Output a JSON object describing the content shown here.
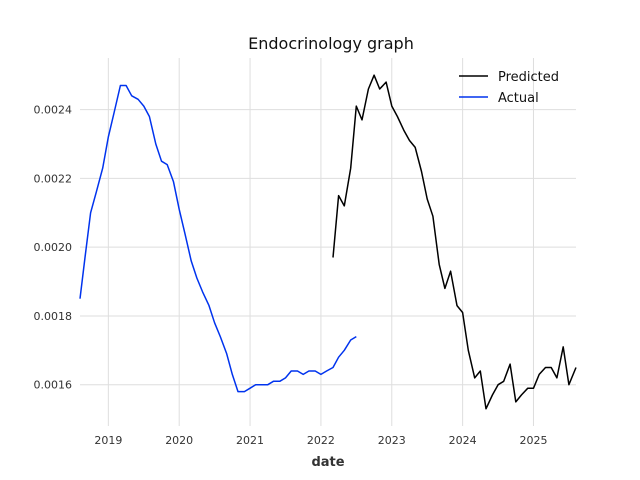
{
  "chart_data": {
    "type": "line",
    "title": "Endocrinology graph",
    "xlabel": "date",
    "ylabel": "",
    "xlim": [
      2018.6,
      2025.6
    ],
    "ylim": [
      0.00148,
      0.00255
    ],
    "x_ticks": [
      2019,
      2020,
      2021,
      2022,
      2023,
      2024,
      2025
    ],
    "x_tick_labels": [
      "2019",
      "2020",
      "2021",
      "2022",
      "2023",
      "2024",
      "2025"
    ],
    "y_ticks": [
      0.0016,
      0.0018,
      0.002,
      0.0022,
      0.0024
    ],
    "y_tick_labels": [
      "0.0016",
      "0.0018",
      "0.0020",
      "0.0022",
      "0.0024"
    ],
    "grid": true,
    "legend_position": "top-right",
    "series": [
      {
        "name": "Predicted",
        "color": "#000000",
        "points": [
          [
            2022.17,
            0.00197
          ],
          [
            2022.25,
            0.00215
          ],
          [
            2022.33,
            0.00212
          ],
          [
            2022.42,
            0.00223
          ],
          [
            2022.5,
            0.00241
          ],
          [
            2022.58,
            0.00237
          ],
          [
            2022.67,
            0.00246
          ],
          [
            2022.75,
            0.0025
          ],
          [
            2022.83,
            0.00246
          ],
          [
            2022.92,
            0.00248
          ],
          [
            2023.0,
            0.00241
          ],
          [
            2023.08,
            0.00238
          ],
          [
            2023.17,
            0.00234
          ],
          [
            2023.25,
            0.00231
          ],
          [
            2023.33,
            0.00229
          ],
          [
            2023.42,
            0.00222
          ],
          [
            2023.5,
            0.00214
          ],
          [
            2023.58,
            0.00209
          ],
          [
            2023.67,
            0.00195
          ],
          [
            2023.75,
            0.00188
          ],
          [
            2023.83,
            0.00193
          ],
          [
            2023.92,
            0.00183
          ],
          [
            2024.0,
            0.00181
          ],
          [
            2024.08,
            0.0017
          ],
          [
            2024.17,
            0.00162
          ],
          [
            2024.25,
            0.00164
          ],
          [
            2024.33,
            0.00153
          ],
          [
            2024.42,
            0.00157
          ],
          [
            2024.5,
            0.0016
          ],
          [
            2024.58,
            0.00161
          ],
          [
            2024.67,
            0.00166
          ],
          [
            2024.75,
            0.00155
          ],
          [
            2024.83,
            0.00157
          ],
          [
            2024.92,
            0.00159
          ],
          [
            2025.0,
            0.00159
          ],
          [
            2025.08,
            0.00163
          ],
          [
            2025.17,
            0.00165
          ],
          [
            2025.25,
            0.00165
          ],
          [
            2025.33,
            0.00162
          ],
          [
            2025.42,
            0.00171
          ],
          [
            2025.5,
            0.0016
          ],
          [
            2025.6,
            0.00165
          ]
        ]
      },
      {
        "name": "Actual",
        "color": "#0033ee",
        "points": [
          [
            2018.6,
            0.00185
          ],
          [
            2018.67,
            0.00197
          ],
          [
            2018.75,
            0.0021
          ],
          [
            2018.83,
            0.00216
          ],
          [
            2018.92,
            0.00223
          ],
          [
            2019.0,
            0.00232
          ],
          [
            2019.08,
            0.00239
          ],
          [
            2019.17,
            0.00247
          ],
          [
            2019.25,
            0.00247
          ],
          [
            2019.33,
            0.00244
          ],
          [
            2019.42,
            0.00243
          ],
          [
            2019.5,
            0.00241
          ],
          [
            2019.58,
            0.00238
          ],
          [
            2019.67,
            0.0023
          ],
          [
            2019.75,
            0.00225
          ],
          [
            2019.83,
            0.00224
          ],
          [
            2019.92,
            0.00219
          ],
          [
            2020.0,
            0.00211
          ],
          [
            2020.08,
            0.00204
          ],
          [
            2020.17,
            0.00196
          ],
          [
            2020.25,
            0.00191
          ],
          [
            2020.33,
            0.00187
          ],
          [
            2020.42,
            0.00183
          ],
          [
            2020.5,
            0.00178
          ],
          [
            2020.58,
            0.00174
          ],
          [
            2020.67,
            0.00169
          ],
          [
            2020.75,
            0.00163
          ],
          [
            2020.83,
            0.00158
          ],
          [
            2020.92,
            0.00158
          ],
          [
            2021.0,
            0.00159
          ],
          [
            2021.08,
            0.0016
          ],
          [
            2021.17,
            0.0016
          ],
          [
            2021.25,
            0.0016
          ],
          [
            2021.33,
            0.00161
          ],
          [
            2021.42,
            0.00161
          ],
          [
            2021.5,
            0.00162
          ],
          [
            2021.58,
            0.00164
          ],
          [
            2021.67,
            0.00164
          ],
          [
            2021.75,
            0.00163
          ],
          [
            2021.83,
            0.00164
          ],
          [
            2021.92,
            0.00164
          ],
          [
            2022.0,
            0.00163
          ],
          [
            2022.08,
            0.00164
          ],
          [
            2022.17,
            0.00165
          ],
          [
            2022.25,
            0.00168
          ],
          [
            2022.33,
            0.0017
          ],
          [
            2022.42,
            0.00173
          ],
          [
            2022.5,
            0.00174
          ]
        ]
      }
    ]
  }
}
